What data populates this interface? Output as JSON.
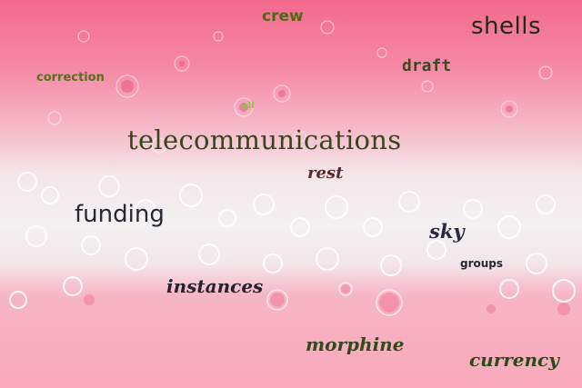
{
  "words": {
    "crew": "crew",
    "shells": "shells",
    "draft": "draft",
    "correction": "correction",
    "all": "all",
    "telecommunications": "telecommunications",
    "rest": "rest",
    "funding": "funding",
    "sky": "sky",
    "groups": "groups",
    "instances": "instances",
    "morphine": "morphine",
    "currency": "currency"
  },
  "colors": {
    "pink_top": "#f46a8e",
    "white_foam": "#f3f1f2",
    "pink_bottom": "#f9a9bb",
    "text_green": "#4f6a12",
    "text_dark": "#262833"
  }
}
